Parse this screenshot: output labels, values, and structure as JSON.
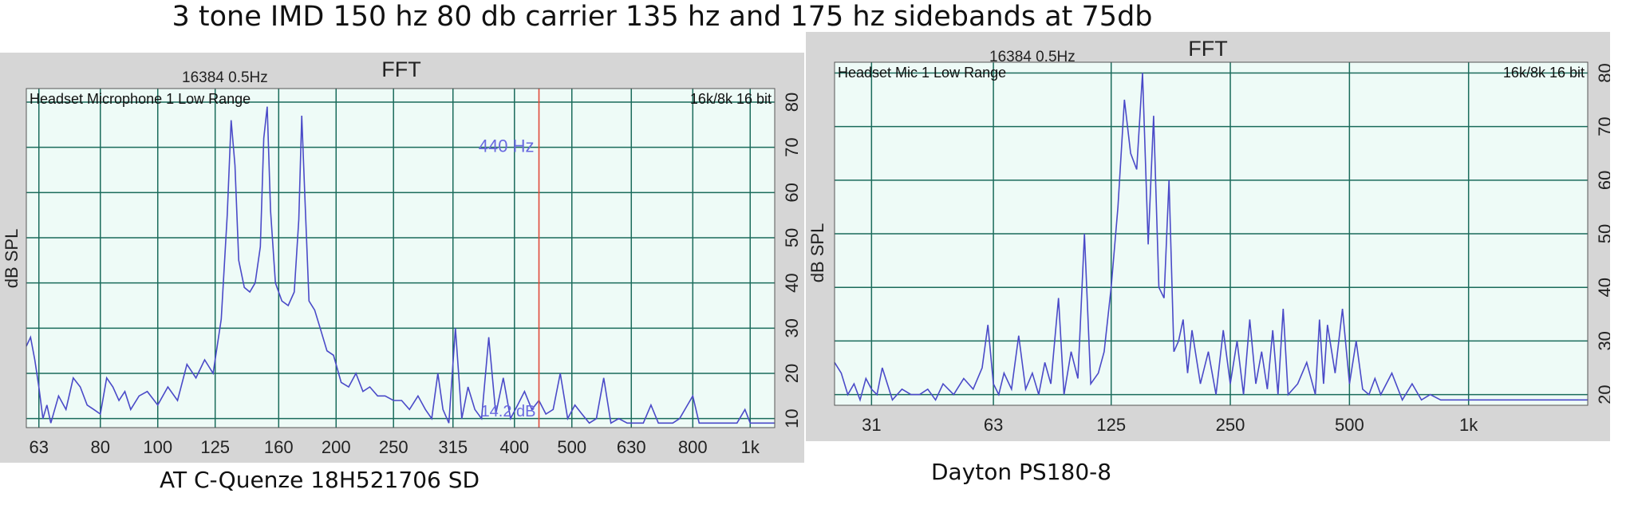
{
  "page_title": "3 tone IMD 150 hz 80 db carrier 135 hz and 175 hz sidebands at 75db",
  "colors": {
    "panel_bg": "#d6d6d6",
    "plot_bg": "#eefbf7",
    "grid": "#1a6b5b",
    "trace": "#4a4ac8",
    "cursor": "#e04a3a"
  },
  "chart_data": [
    {
      "type": "line",
      "title": "FFT",
      "fft_info": "16384  0.5Hz",
      "channel": "Headset Microphone 1 Low Range",
      "format": "16k/8k 16 bit",
      "ylabel": "dB SPL",
      "caption": "AT C-Quenze 18H521706 SD",
      "xscale": "log",
      "xlim": [
        60,
        1100
      ],
      "ylim": [
        8,
        83
      ],
      "xticks": [
        63,
        80,
        100,
        125,
        160,
        200,
        250,
        315,
        400,
        500,
        630,
        800,
        1000
      ],
      "xtick_labels": [
        "63",
        "80",
        "100",
        "125",
        "160",
        "200",
        "250",
        "315",
        "400",
        "500",
        "630",
        "800",
        "1k"
      ],
      "yticks": [
        10,
        20,
        30,
        40,
        50,
        60,
        70,
        80
      ],
      "grid": true,
      "cursor_freq": 440,
      "cursor_freq_label": "440 Hz",
      "cursor_level_label": "14.2 dB",
      "series": [
        {
          "x": [
            60,
            61,
            62,
            63,
            64,
            65,
            66,
            68,
            70,
            72,
            74,
            76,
            78,
            80,
            82,
            84,
            86,
            88,
            90,
            93,
            96,
            100,
            104,
            108,
            112,
            116,
            120,
            124,
            128,
            131,
            133,
            135,
            137,
            140,
            143,
            146,
            149,
            151,
            153,
            155,
            158,
            162,
            166,
            170,
            173,
            175,
            177,
            180,
            184,
            188,
            193,
            198,
            204,
            210,
            216,
            222,
            228,
            235,
            242,
            250,
            258,
            266,
            275,
            283,
            290,
            297,
            303,
            310,
            318,
            326,
            334,
            343,
            352,
            362,
            372,
            383,
            394,
            405,
            416,
            428,
            440,
            452,
            465,
            478,
            492,
            506,
            520,
            535,
            550,
            566,
            582,
            600,
            620,
            640,
            660,
            680,
            700,
            720,
            740,
            760,
            800,
            820,
            840,
            860,
            890,
            920,
            950,
            980,
            1000,
            1030,
            1060,
            1100
          ],
          "y": [
            26,
            28,
            23,
            17,
            10,
            13,
            9,
            15,
            12,
            19,
            17,
            13,
            12,
            11,
            19,
            17,
            14,
            16,
            12,
            15,
            16,
            13,
            17,
            14,
            22,
            19,
            23,
            20,
            32,
            55,
            76,
            66,
            45,
            39,
            38,
            40,
            48,
            72,
            79,
            56,
            40,
            36,
            35,
            38,
            54,
            77,
            60,
            36,
            34,
            30,
            25,
            24,
            18,
            17,
            20,
            16,
            17,
            15,
            15,
            14,
            14,
            12,
            15,
            12,
            10,
            20,
            12,
            9,
            30,
            10,
            17,
            12,
            10,
            28,
            11,
            19,
            10,
            13,
            16,
            12,
            14,
            11,
            12,
            20,
            10,
            13,
            11,
            9,
            10,
            19,
            9,
            10,
            9,
            9,
            9,
            13,
            9,
            9,
            9,
            10,
            15,
            9,
            9,
            9,
            9,
            9,
            9,
            12,
            9,
            9,
            9,
            9
          ]
        }
      ]
    },
    {
      "type": "line",
      "title": "FFT",
      "fft_info": "16384  0.5Hz",
      "channel": "Headset Mic 1 Low Range",
      "format": "16k/8k 16 bit",
      "ylabel": "dB SPL",
      "caption": "Dayton PS180-8",
      "xscale": "log",
      "xlim": [
        25,
        2000
      ],
      "ylim": [
        18,
        82
      ],
      "xticks": [
        31,
        63,
        125,
        250,
        500,
        1000
      ],
      "xtick_labels": [
        "31",
        "63",
        "125",
        "250",
        "500",
        "1k"
      ],
      "yticks": [
        20,
        30,
        40,
        50,
        60,
        70,
        80
      ],
      "grid": true,
      "series": [
        {
          "x": [
            25,
            26,
            27,
            28,
            29,
            30,
            31,
            32,
            33,
            35,
            37,
            39,
            41,
            43,
            45,
            47,
            50,
            53,
            56,
            59,
            61,
            63,
            65,
            67,
            70,
            73,
            76,
            79,
            82,
            85,
            88,
            92,
            95,
            99,
            103,
            107,
            111,
            116,
            120,
            125,
            130,
            135,
            140,
            145,
            150,
            155,
            160,
            165,
            170,
            175,
            180,
            185,
            190,
            195,
            200,
            210,
            220,
            230,
            240,
            250,
            260,
            270,
            280,
            290,
            300,
            310,
            320,
            330,
            340,
            350,
            370,
            390,
            410,
            420,
            430,
            440,
            460,
            480,
            500,
            520,
            540,
            560,
            580,
            600,
            640,
            680,
            720,
            760,
            800,
            850,
            900,
            1000,
            1200,
            1500,
            2000
          ],
          "y": [
            26,
            24,
            20,
            22,
            19,
            23,
            21,
            20,
            25,
            19,
            21,
            20,
            20,
            21,
            19,
            22,
            20,
            23,
            21,
            25,
            33,
            22,
            20,
            24,
            21,
            31,
            21,
            24,
            20,
            26,
            22,
            38,
            20,
            28,
            23,
            50,
            22,
            24,
            28,
            40,
            55,
            75,
            65,
            62,
            80,
            48,
            72,
            40,
            38,
            60,
            28,
            30,
            34,
            24,
            32,
            22,
            28,
            20,
            32,
            22,
            30,
            20,
            34,
            22,
            28,
            21,
            32,
            20,
            36,
            20,
            22,
            26,
            20,
            34,
            22,
            33,
            24,
            36,
            22,
            30,
            21,
            20,
            23,
            20,
            24,
            19,
            22,
            19,
            20,
            19,
            19,
            19,
            19,
            19,
            19
          ]
        }
      ]
    }
  ]
}
